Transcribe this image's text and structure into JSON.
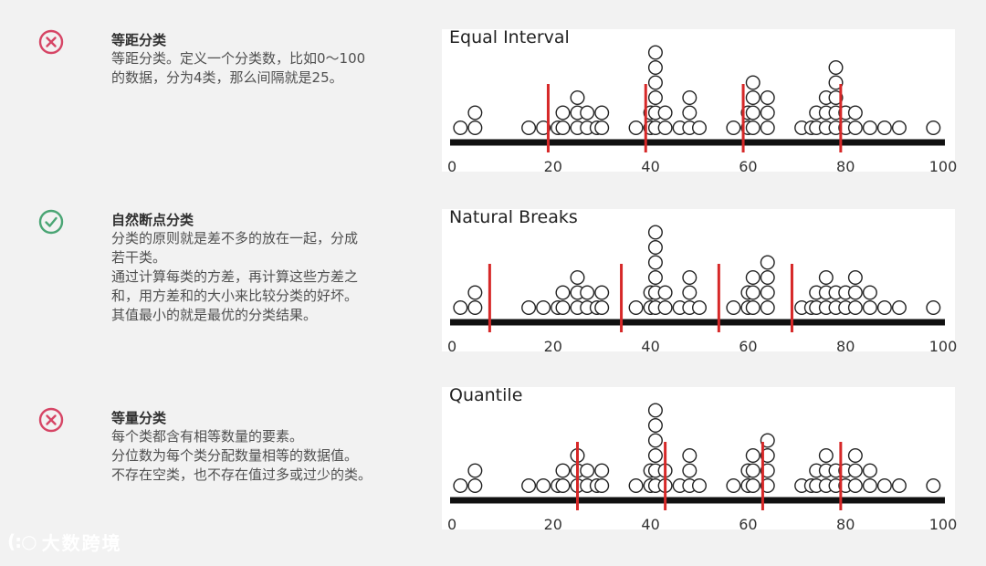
{
  "colors": {
    "bad": "#d64565",
    "good": "#4aa574",
    "break_line": "#d62828",
    "axis": "#111111",
    "dot_stroke": "#222222",
    "dot_fill": "#ffffff"
  },
  "sections": [
    {
      "status": "bad",
      "icon": "x-circle-icon",
      "title": "等距分类",
      "desc": [
        "等距分类。定义一个分类数，比如0～100",
        "的数据，分为4类，那么间隔就是25。"
      ]
    },
    {
      "status": "good",
      "icon": "check-circle-icon",
      "title": "自然断点分类",
      "desc": [
        "分类的原则就是差不多的放在一起，分成",
        "若干类。",
        "通过计算每类的方差，再计算这些方差之",
        "和，用方差和的大小来比较分类的好坏。",
        "其值最小的就是最优的分类结果。"
      ]
    },
    {
      "status": "bad",
      "icon": "x-circle-icon",
      "title": "等量分类",
      "desc": [
        "每个类都含有相等数量的要素。",
        "分位数为每个类分配数量相等的数据值。",
        "不存在空类，也不存在值过多或过少的类。"
      ]
    }
  ],
  "chart_data": [
    {
      "type": "dot-plot",
      "title": "Equal Interval",
      "xlim": [
        0,
        100
      ],
      "ticks": [
        0,
        20,
        40,
        60,
        80,
        100
      ],
      "dot_counts": [
        [
          1,
          1
        ],
        [
          4,
          2
        ],
        [
          15,
          1
        ],
        [
          18,
          1
        ],
        [
          21,
          1
        ],
        [
          22,
          2
        ],
        [
          25,
          3
        ],
        [
          27,
          2
        ],
        [
          29,
          1
        ],
        [
          30,
          2
        ],
        [
          37,
          1
        ],
        [
          40,
          2
        ],
        [
          41,
          6
        ],
        [
          43,
          2
        ],
        [
          46,
          1
        ],
        [
          48,
          3
        ],
        [
          50,
          1
        ],
        [
          57,
          1
        ],
        [
          60,
          2
        ],
        [
          61,
          4
        ],
        [
          64,
          3
        ],
        [
          71,
          1
        ],
        [
          73,
          1
        ],
        [
          74,
          2
        ],
        [
          76,
          3
        ],
        [
          78,
          5
        ],
        [
          80,
          2
        ],
        [
          82,
          2
        ],
        [
          85,
          1
        ],
        [
          88,
          1
        ],
        [
          91,
          1
        ],
        [
          98,
          1
        ]
      ],
      "breaks": [
        19,
        39,
        59,
        79
      ]
    },
    {
      "type": "dot-plot",
      "title": "Natural Breaks",
      "xlim": [
        0,
        100
      ],
      "ticks": [
        0,
        20,
        40,
        60,
        80,
        100
      ],
      "dot_counts": [
        [
          1,
          1
        ],
        [
          4,
          2
        ],
        [
          15,
          1
        ],
        [
          18,
          1
        ],
        [
          21,
          1
        ],
        [
          22,
          2
        ],
        [
          25,
          3
        ],
        [
          27,
          2
        ],
        [
          29,
          1
        ],
        [
          30,
          2
        ],
        [
          37,
          1
        ],
        [
          40,
          2
        ],
        [
          41,
          6
        ],
        [
          43,
          2
        ],
        [
          46,
          1
        ],
        [
          48,
          3
        ],
        [
          50,
          1
        ],
        [
          57,
          1
        ],
        [
          60,
          2
        ],
        [
          61,
          3
        ],
        [
          64,
          4
        ],
        [
          71,
          1
        ],
        [
          73,
          1
        ],
        [
          74,
          2
        ],
        [
          76,
          3
        ],
        [
          78,
          2
        ],
        [
          80,
          2
        ],
        [
          82,
          3
        ],
        [
          85,
          2
        ],
        [
          88,
          1
        ],
        [
          91,
          1
        ],
        [
          98,
          1
        ]
      ],
      "breaks": [
        7,
        34,
        54,
        69
      ]
    },
    {
      "type": "dot-plot",
      "title": "Quantile",
      "xlim": [
        0,
        100
      ],
      "ticks": [
        0,
        20,
        40,
        60,
        80,
        100
      ],
      "dot_counts": [
        [
          1,
          1
        ],
        [
          4,
          2
        ],
        [
          15,
          1
        ],
        [
          18,
          1
        ],
        [
          21,
          1
        ],
        [
          22,
          2
        ],
        [
          25,
          3
        ],
        [
          27,
          2
        ],
        [
          29,
          1
        ],
        [
          30,
          2
        ],
        [
          37,
          1
        ],
        [
          40,
          2
        ],
        [
          41,
          6
        ],
        [
          43,
          2
        ],
        [
          46,
          1
        ],
        [
          48,
          3
        ],
        [
          50,
          1
        ],
        [
          57,
          1
        ],
        [
          60,
          2
        ],
        [
          61,
          3
        ],
        [
          64,
          4
        ],
        [
          71,
          1
        ],
        [
          73,
          1
        ],
        [
          74,
          2
        ],
        [
          76,
          3
        ],
        [
          78,
          2
        ],
        [
          80,
          2
        ],
        [
          82,
          3
        ],
        [
          85,
          2
        ],
        [
          88,
          1
        ],
        [
          91,
          1
        ],
        [
          98,
          1
        ]
      ],
      "breaks": [
        25,
        43,
        63,
        79
      ]
    }
  ],
  "watermark": {
    "logo": "(:○",
    "text": "大数跨境"
  }
}
